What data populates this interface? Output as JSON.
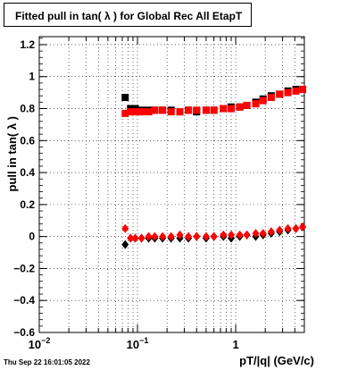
{
  "title": "Fitted pull in tan( λ ) for Global Rec All EtapT",
  "timestamp": "Thu Sep 22 16:01:05 2022",
  "chart_data": {
    "type": "scatter",
    "title": "Fitted pull in tan( λ ) for Global Rec All EtapT",
    "xlabel": "pT/|q| (GeV/c)",
    "ylabel": "pull in tan( λ )",
    "xscale": "log",
    "xlim": [
      0.01,
      5
    ],
    "ylim": [
      -0.6,
      1.25
    ],
    "grid": true,
    "x_ticks": [
      "10^{-2}",
      "10^{-1}",
      "1"
    ],
    "y_ticks": [
      "−0.6",
      "−0.4",
      "−0.2",
      "0",
      "0.2",
      "0.4",
      "0.6",
      "0.8",
      "1",
      "1.2"
    ],
    "series": [
      {
        "marker": "square",
        "color": "#000000",
        "x": [
          0.075,
          0.085,
          0.095,
          0.11,
          0.13,
          0.15,
          0.18,
          0.22,
          0.27,
          0.33,
          0.4,
          0.5,
          0.6,
          0.75,
          0.9,
          1.1,
          1.3,
          1.6,
          1.9,
          2.3,
          2.8,
          3.4,
          4.1,
          4.8
        ],
        "y": [
          0.87,
          0.8,
          0.8,
          0.79,
          0.79,
          0.79,
          0.79,
          0.79,
          0.78,
          0.79,
          0.78,
          0.79,
          0.79,
          0.8,
          0.81,
          0.81,
          0.82,
          0.84,
          0.86,
          0.88,
          0.89,
          0.91,
          0.92,
          0.92
        ]
      },
      {
        "marker": "square",
        "color": "#ff0000",
        "x": [
          0.075,
          0.085,
          0.095,
          0.11,
          0.13,
          0.15,
          0.18,
          0.22,
          0.27,
          0.33,
          0.4,
          0.5,
          0.6,
          0.75,
          0.9,
          1.1,
          1.3,
          1.6,
          1.9,
          2.3,
          2.8,
          3.4,
          4.1,
          4.8
        ],
        "y": [
          0.77,
          0.78,
          0.78,
          0.78,
          0.78,
          0.79,
          0.79,
          0.78,
          0.78,
          0.79,
          0.79,
          0.79,
          0.79,
          0.8,
          0.8,
          0.81,
          0.82,
          0.83,
          0.85,
          0.87,
          0.89,
          0.9,
          0.91,
          0.92
        ]
      },
      {
        "marker": "diamond",
        "color": "#000000",
        "x": [
          0.075,
          0.085,
          0.095,
          0.11,
          0.13,
          0.15,
          0.18,
          0.22,
          0.27,
          0.33,
          0.4,
          0.5,
          0.6,
          0.75,
          0.9,
          1.1,
          1.3,
          1.6,
          1.9,
          2.3,
          2.8,
          3.4,
          4.1,
          4.8
        ],
        "y": [
          -0.05,
          -0.01,
          -0.01,
          -0.01,
          -0.01,
          -0.01,
          -0.01,
          -0.01,
          -0.01,
          -0.01,
          0.0,
          -0.01,
          0.0,
          0.0,
          -0.01,
          0.0,
          0.01,
          0.0,
          0.01,
          0.02,
          0.03,
          0.04,
          0.05,
          0.06
        ]
      },
      {
        "marker": "diamond",
        "color": "#ff0000",
        "x": [
          0.075,
          0.085,
          0.095,
          0.11,
          0.13,
          0.15,
          0.18,
          0.22,
          0.27,
          0.33,
          0.4,
          0.5,
          0.6,
          0.75,
          0.9,
          1.1,
          1.3,
          1.6,
          1.9,
          2.3,
          2.8,
          3.4,
          4.1,
          4.8
        ],
        "y": [
          0.05,
          -0.01,
          -0.01,
          -0.01,
          0.0,
          0.0,
          0.0,
          0.0,
          0.01,
          0.0,
          0.0,
          0.0,
          0.0,
          0.01,
          0.01,
          0.01,
          0.01,
          0.02,
          0.02,
          0.03,
          0.04,
          0.05,
          0.05,
          0.06
        ]
      }
    ]
  }
}
